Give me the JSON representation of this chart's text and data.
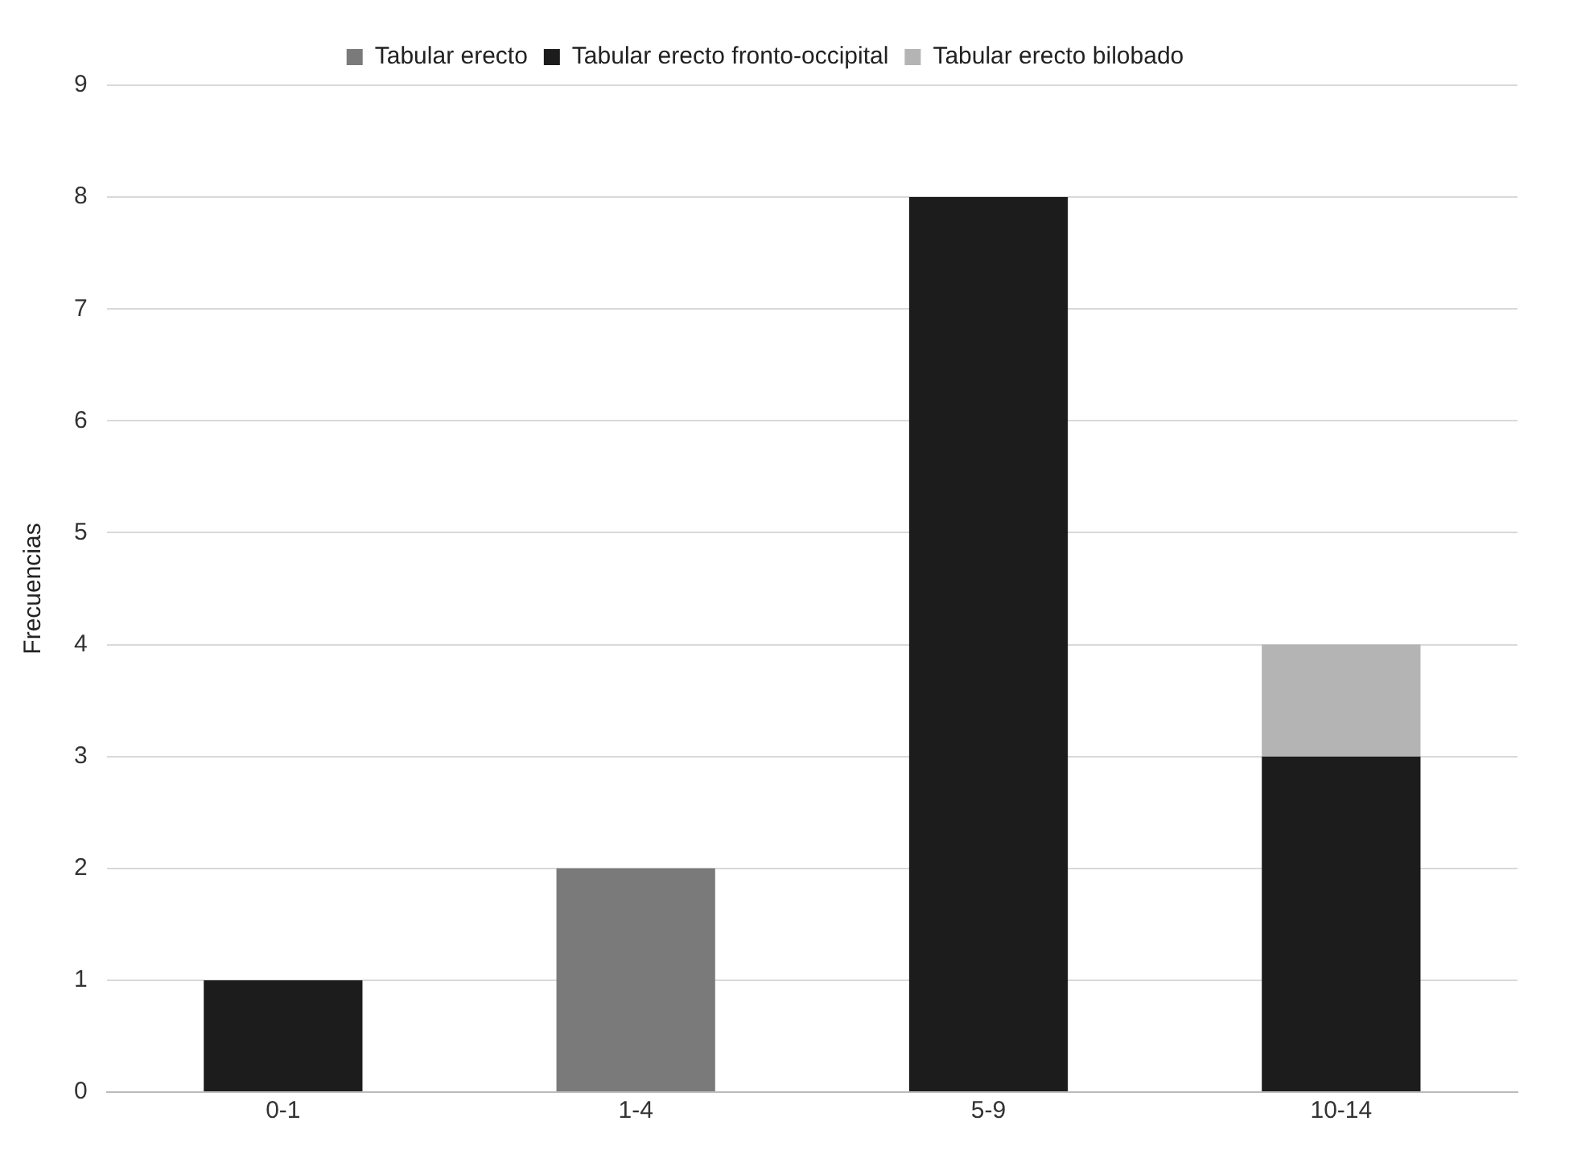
{
  "chart_data": {
    "type": "bar",
    "ylabel": "Frecuencias",
    "categories": [
      "0-1",
      "1-4",
      "5-9",
      "10-14"
    ],
    "stacked": true,
    "series": [
      {
        "name": "Tabular erecto",
        "color": "#7a7a7a",
        "values": [
          0,
          2,
          0,
          0
        ]
      },
      {
        "name": "Tabular erecto fronto-occipital",
        "color": "#1c1c1c",
        "values": [
          1,
          0,
          8,
          3
        ]
      },
      {
        "name": "Tabular erecto bilobado",
        "color": "#b4b4b4",
        "values": [
          0,
          0,
          0,
          1
        ]
      }
    ],
    "ylim": [
      0,
      9
    ],
    "yticks": [
      0,
      1,
      2,
      3,
      4,
      5,
      6,
      7,
      8,
      9
    ],
    "grid": "y",
    "legend": "top"
  }
}
